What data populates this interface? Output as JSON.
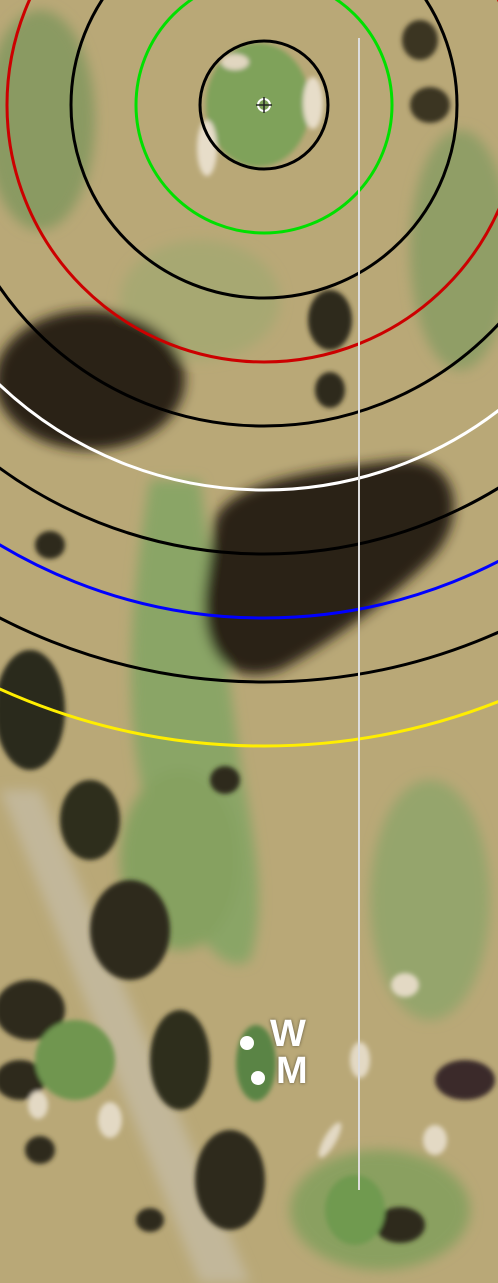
{
  "map": {
    "type": "golf-hole-satellite",
    "pin_marker_icon": "flag-target-icon",
    "distance_rings": [
      {
        "name": "ring-1",
        "color": "#000000"
      },
      {
        "name": "ring-2",
        "color": "#00e000"
      },
      {
        "name": "ring-3",
        "color": "#000000"
      },
      {
        "name": "ring-4",
        "color": "#cc0000"
      },
      {
        "name": "ring-5",
        "color": "#000000"
      },
      {
        "name": "ring-6",
        "color": "#ffffff"
      },
      {
        "name": "ring-7",
        "color": "#000000"
      },
      {
        "name": "ring-8",
        "color": "#0000ff"
      },
      {
        "name": "ring-9",
        "color": "#000000"
      },
      {
        "name": "ring-10",
        "color": "#ffee00"
      }
    ],
    "center_line_color": "#dddddd",
    "tees": [
      {
        "label": "W",
        "color": "#ffffff"
      },
      {
        "label": "M",
        "color": "#ffffff"
      }
    ]
  }
}
